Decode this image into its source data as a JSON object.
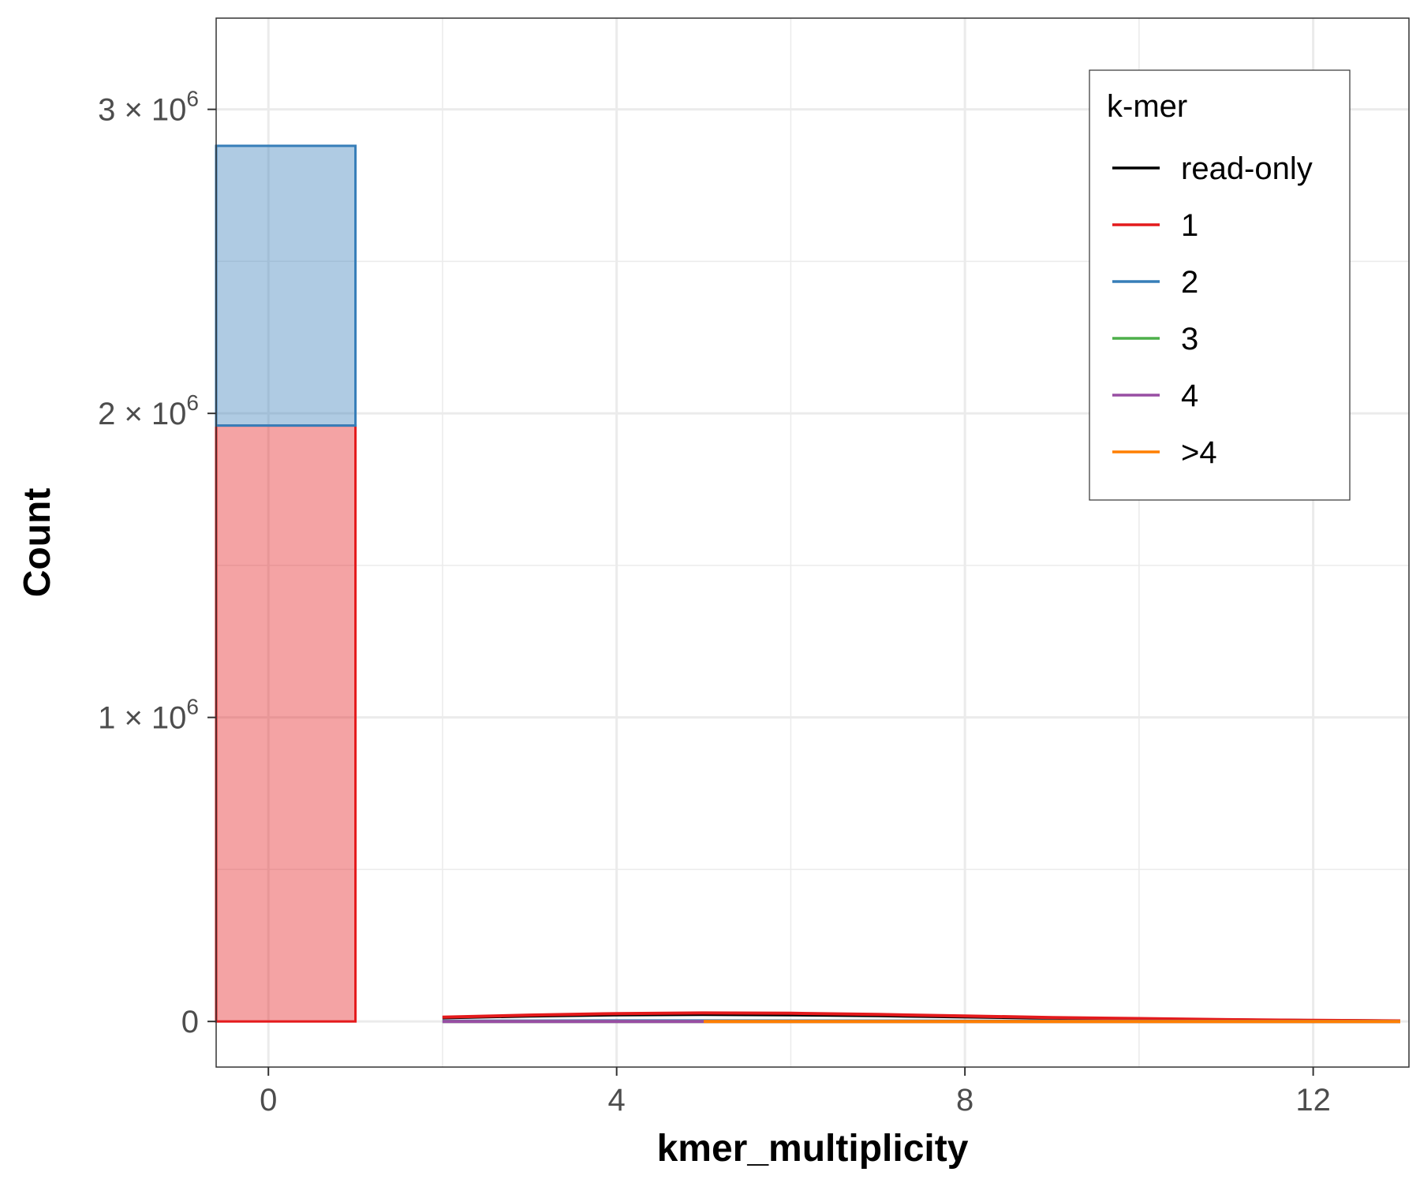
{
  "chart_data": {
    "type": "histogram",
    "xlabel": "kmer_multiplicity",
    "ylabel": "Count",
    "xlim": [
      -0.6,
      13.1
    ],
    "ylim": [
      -150000,
      3300000
    ],
    "x_ticks": [
      0,
      4,
      8,
      12
    ],
    "x_tick_labels": [
      "0",
      "4",
      "8",
      "12"
    ],
    "y_ticks": [
      {
        "value": 0,
        "mantissa": "0",
        "exp": ""
      },
      {
        "value": 1000000,
        "mantissa": "1 × 10",
        "exp": "6"
      },
      {
        "value": 2000000,
        "mantissa": "2 × 10",
        "exp": "6"
      },
      {
        "value": 3000000,
        "mantissa": "3 × 10",
        "exp": "6"
      }
    ],
    "grid": true,
    "stacked": true,
    "bins": [
      {
        "xmin": -1,
        "xmax": 1,
        "segments": [
          {
            "series": "1",
            "value": 1960000
          },
          {
            "series": "2",
            "value": 920000
          }
        ]
      }
    ],
    "series": [
      {
        "name": "read-only",
        "color": "#000000",
        "x": [
          2,
          3,
          4,
          5,
          6,
          7,
          8,
          9,
          10,
          11,
          12,
          13
        ],
        "y": [
          12000,
          18000,
          22000,
          23000,
          22000,
          19000,
          15000,
          11000,
          8000,
          5000,
          3000,
          1500
        ]
      },
      {
        "name": "1",
        "color": "#e41a1c",
        "x": [
          2,
          3,
          4,
          5,
          6,
          7,
          8,
          9,
          10,
          11,
          12,
          13
        ],
        "y": [
          14000,
          21000,
          26000,
          28000,
          27000,
          23000,
          18000,
          13000,
          9500,
          6000,
          3500,
          1800
        ]
      },
      {
        "name": "2",
        "color": "#377eb8",
        "x": [
          2,
          3,
          4,
          5,
          6,
          7,
          8,
          9,
          10,
          11,
          12,
          13
        ],
        "y": [
          1000,
          1500,
          2000,
          2000,
          1800,
          1500,
          1200,
          900,
          600,
          400,
          200,
          100
        ]
      },
      {
        "name": "3",
        "color": "#4daf4a",
        "x": [
          2,
          3,
          4,
          5,
          6,
          7,
          8,
          9,
          10,
          11,
          12,
          13
        ],
        "y": [
          0,
          0,
          0,
          0,
          0,
          0,
          0,
          0,
          0,
          0,
          0,
          0
        ]
      },
      {
        "name": "4",
        "color": "#984ea3",
        "x": [
          2,
          3,
          4,
          5,
          6,
          7,
          8,
          9,
          10,
          11,
          12,
          13
        ],
        "y": [
          0,
          0,
          0,
          0,
          0,
          0,
          0,
          0,
          0,
          0,
          0,
          0
        ]
      },
      {
        "name": ">4",
        "color": "#ff7f00",
        "x": [
          5,
          6,
          7,
          8,
          9,
          10,
          11,
          12,
          13
        ],
        "y": [
          0,
          0,
          0,
          0,
          0,
          0,
          0,
          0,
          0
        ]
      }
    ],
    "legend": {
      "title": "k-mer",
      "position": "top-right",
      "items": [
        {
          "label": "read-only",
          "color": "#000000"
        },
        {
          "label": "1",
          "color": "#e41a1c"
        },
        {
          "label": "2",
          "color": "#377eb8"
        },
        {
          "label": "3",
          "color": "#4daf4a"
        },
        {
          "label": "4",
          "color": "#984ea3"
        },
        {
          "label": ">4",
          "color": "#ff7f00"
        }
      ]
    }
  }
}
